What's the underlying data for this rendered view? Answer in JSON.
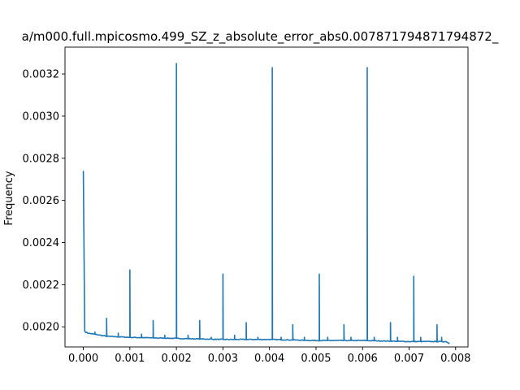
{
  "chart_data": {
    "type": "line",
    "title": "a/m000.full.mpicosmo.499_SZ_z_absolute_error_abs0.007871794871794872_",
    "xlabel": "",
    "ylabel": "Frequency",
    "xlim": [
      -0.000394,
      0.008266
    ],
    "ylim": [
      0.0019045,
      0.0033275
    ],
    "grid": false,
    "legend": "none",
    "color": "#1f77b4",
    "x_ticks": [
      0.0,
      0.001,
      0.002,
      0.003,
      0.004,
      0.005,
      0.006,
      0.007,
      0.008
    ],
    "x_tick_labels": [
      "0.000",
      "0.001",
      "0.002",
      "0.003",
      "0.004",
      "0.005",
      "0.006",
      "0.007",
      "0.008"
    ],
    "y_ticks": [
      0.002,
      0.0022,
      0.0024,
      0.0026,
      0.0028,
      0.003,
      0.0032
    ],
    "y_tick_labels": [
      "0.0020",
      "0.0022",
      "0.0024",
      "0.0026",
      "0.0028",
      "0.0030",
      "0.0032"
    ],
    "baseline": [
      [
        0.0,
        0.00198
      ],
      [
        0.0001,
        0.00197
      ],
      [
        0.0005,
        0.001955
      ],
      [
        0.001,
        0.00195
      ],
      [
        0.002,
        0.001945
      ],
      [
        0.003,
        0.00194
      ],
      [
        0.004,
        0.00194
      ],
      [
        0.005,
        0.001935
      ],
      [
        0.006,
        0.001935
      ],
      [
        0.007,
        0.00193
      ],
      [
        0.0078,
        0.00193
      ],
      [
        0.00787,
        0.00192
      ]
    ],
    "series": [
      {
        "values": [
          [
            0.0,
            0.00274
          ],
          [
            3e-05,
            0.00198
          ],
          [
            0.0005,
            0.00204
          ],
          [
            0.001,
            0.00227
          ],
          [
            0.0015,
            0.00203
          ],
          [
            0.002,
            0.00325
          ],
          [
            0.0025,
            0.00203
          ],
          [
            0.003,
            0.00225
          ],
          [
            0.0035,
            0.00202
          ],
          [
            0.00406,
            0.00323
          ],
          [
            0.0045,
            0.00201
          ],
          [
            0.00507,
            0.00225
          ],
          [
            0.0056,
            0.00201
          ],
          [
            0.0061,
            0.00323
          ],
          [
            0.0066,
            0.00202
          ],
          [
            0.0071,
            0.00224
          ],
          [
            0.0076,
            0.00201
          ]
        ]
      }
    ],
    "minor_bumps": [
      [
        0.00025,
        0.001975
      ],
      [
        0.00075,
        0.00197
      ],
      [
        0.00125,
        0.001965
      ],
      [
        0.00175,
        0.00196
      ],
      [
        0.00225,
        0.00196
      ],
      [
        0.00275,
        0.00195
      ],
      [
        0.00325,
        0.00196
      ],
      [
        0.00375,
        0.00195
      ],
      [
        0.00425,
        0.00195
      ],
      [
        0.00475,
        0.00195
      ],
      [
        0.00525,
        0.00195
      ],
      [
        0.00575,
        0.00195
      ],
      [
        0.00625,
        0.00195
      ],
      [
        0.00675,
        0.00195
      ],
      [
        0.00725,
        0.00195
      ],
      [
        0.0077,
        0.00195
      ]
    ]
  }
}
